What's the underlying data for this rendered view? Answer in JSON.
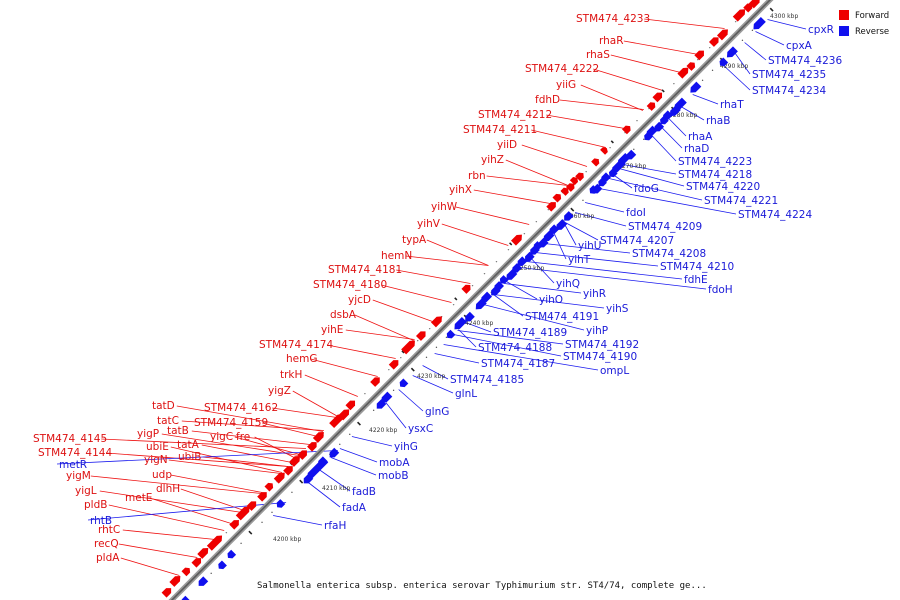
{
  "legend": {
    "forward_label": "Forward",
    "forward_color": "#ee0000",
    "reverse_label": "Reverse",
    "reverse_color": "#1010ee"
  },
  "caption": "Salmonella enterica subsp. enterica serovar Typhimurium str. ST4/74, complete ge...",
  "ticks": [
    "4200 kbp",
    "4210 kbp",
    "4220 kbp",
    "4230 kbp",
    "4240 kbp",
    "4250 kbp",
    "4260 kbp",
    "4270 kbp",
    "4280 kbp",
    "4290 kbp",
    "4300 kbp"
  ],
  "forward_genes": [
    "STM474_4233",
    "rhaR",
    "rhaS",
    "STM474_4222",
    "yiiG",
    "fdhD",
    "STM474_4212",
    "STM474_4211",
    "yiiD",
    "yihZ",
    "rbn",
    "yihX",
    "yihW",
    "yihV",
    "typA",
    "hemN",
    "STM474_4181",
    "STM474_4180",
    "yjcD",
    "dsbA",
    "yihE",
    "STM474_4174",
    "hemG",
    "trkH",
    "yigZ",
    "STM474_4162",
    "STM474_4159",
    "yigC",
    "fre",
    "tatD",
    "tatC",
    "tatB",
    "tatA",
    "yigP",
    "ubiE",
    "ubiB",
    "yigN",
    "udp",
    "dlhH",
    "metE",
    "STM474_4145",
    "STM474_4144",
    "yigM",
    "yigL",
    "pldB",
    "rhtC",
    "recQ",
    "pldA"
  ],
  "reverse_genes": [
    "cpxR",
    "cpxA",
    "STM474_4236",
    "STM474_4235",
    "STM474_4234",
    "rhaT",
    "rhaB",
    "rhaA",
    "rhaD",
    "STM474_4223",
    "STM474_4218",
    "fdoG",
    "STM474_4220",
    "STM474_4221",
    "STM474_4224",
    "fdoI",
    "STM474_4209",
    "STM474_4207",
    "yihU",
    "yihT",
    "STM474_4208",
    "STM474_4210",
    "fdhE",
    "fdoH",
    "yihQ",
    "yihR",
    "yihS",
    "yihO",
    "STM474_4191",
    "yihP",
    "STM474_4189",
    "STM474_4192",
    "STM474_4188",
    "STM474_4190",
    "ompL",
    "STM474_4187",
    "STM474_4185",
    "glnL",
    "glnG",
    "ysxC",
    "yihG",
    "mobA",
    "mobB",
    "fadB",
    "fadA",
    "rfaH",
    "metR",
    "rhtB"
  ]
}
